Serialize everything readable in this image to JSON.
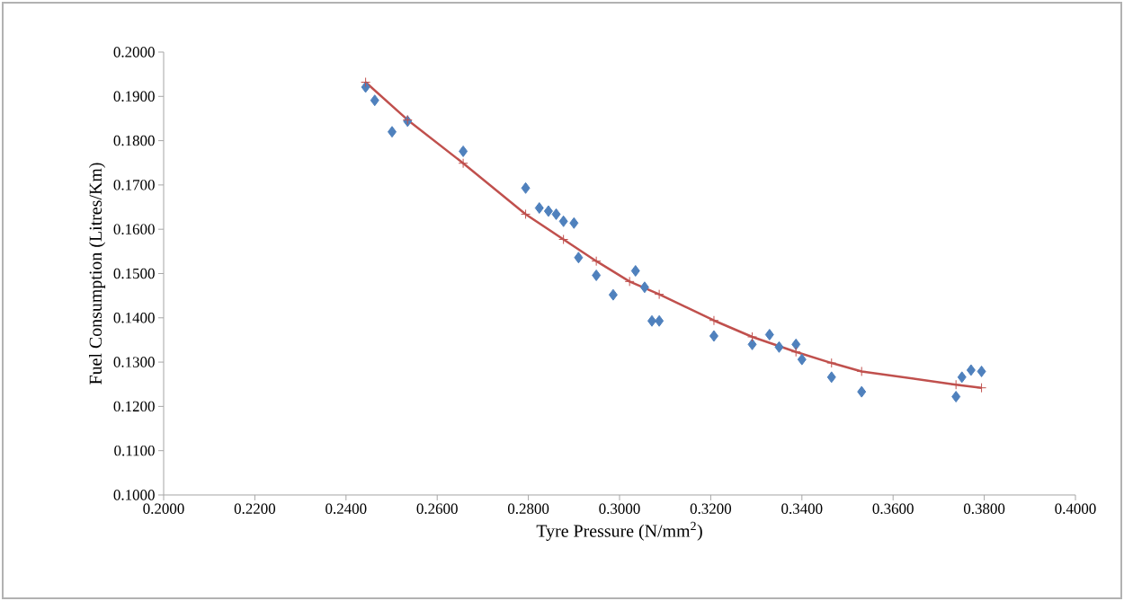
{
  "chart_data": {
    "type": "scatter",
    "xlabel": "Tyre Pressure (N/mm$^{2}$)",
    "ylabel": "Fuel Consumption (Litres/Km)",
    "xlim": [
      0.2,
      0.4
    ],
    "xticks": [
      {
        "value": 0.2,
        "label": "0.2000"
      },
      {
        "value": 0.22,
        "label": "0.2200"
      },
      {
        "value": 0.24,
        "label": "0.2400"
      },
      {
        "value": 0.26,
        "label": "0.2600"
      },
      {
        "value": 0.28,
        "label": "0.2800"
      },
      {
        "value": 0.3,
        "label": "0.3000"
      },
      {
        "value": 0.32,
        "label": "0.3200"
      },
      {
        "value": 0.34,
        "label": "0.3400"
      },
      {
        "value": 0.36,
        "label": "0.3600"
      },
      {
        "value": 0.38,
        "label": "0.3800"
      },
      {
        "value": 0.4,
        "label": "0.4000"
      }
    ],
    "ylim": [
      0.1,
      0.2
    ],
    "yticks": [
      {
        "value": 0.1,
        "label": "0.1000"
      },
      {
        "value": 0.11,
        "label": "0.1100"
      },
      {
        "value": 0.12,
        "label": "0.1200"
      },
      {
        "value": 0.13,
        "label": "0.1300"
      },
      {
        "value": 0.14,
        "label": "0.1400"
      },
      {
        "value": 0.15,
        "label": "0.1500"
      },
      {
        "value": 0.16,
        "label": "0.1600"
      },
      {
        "value": 0.17,
        "label": "0.1700"
      },
      {
        "value": 0.18,
        "label": "0.1800"
      },
      {
        "value": 0.19,
        "label": "0.1900"
      },
      {
        "value": 0.2,
        "label": "0.2000"
      }
    ],
    "series": [
      {
        "marker": "diamond",
        "color": "#4f81bd",
        "x": [
          0.2443,
          0.2463,
          0.2501,
          0.2535,
          0.2657,
          0.2794,
          0.2824,
          0.2844,
          0.2861,
          0.2877,
          0.29,
          0.291,
          0.2949,
          0.2986,
          0.3035,
          0.3055,
          0.3071,
          0.3087,
          0.3207,
          0.3291,
          0.3329,
          0.335,
          0.3387,
          0.34,
          0.3465,
          0.3531,
          0.3738,
          0.3751,
          0.3771,
          0.3794
        ],
        "values": [
          0.1921,
          0.1891,
          0.182,
          0.1844,
          0.1776,
          0.1693,
          0.1648,
          0.1641,
          0.1634,
          0.1618,
          0.1614,
          0.1536,
          0.1496,
          0.1452,
          0.1506,
          0.1469,
          0.1393,
          0.1393,
          0.1359,
          0.134,
          0.1362,
          0.1334,
          0.134,
          0.1306,
          0.1266,
          0.1233,
          0.1222,
          0.1266,
          0.1282,
          0.1279
        ]
      },
      {
        "type": "line",
        "marker": "cross",
        "line_style": "solid",
        "color": "#c0504d",
        "x": [
          0.2443,
          0.2535,
          0.2657,
          0.2794,
          0.2877,
          0.2949,
          0.3022,
          0.3087,
          0.3207,
          0.3291,
          0.3387,
          0.3465,
          0.3531,
          0.3738,
          0.3794
        ],
        "values": [
          0.1932,
          0.1847,
          0.1749,
          0.1634,
          0.1577,
          0.1528,
          0.1482,
          0.1453,
          0.1394,
          0.1357,
          0.1323,
          0.1298,
          0.1279,
          0.1249,
          0.1242
        ]
      }
    ]
  }
}
